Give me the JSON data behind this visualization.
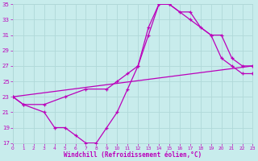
{
  "xlabel": "Windchill (Refroidissement éolien,°C)",
  "bg_color": "#c8ecec",
  "grid_color": "#b0d8d8",
  "line_color": "#bb00bb",
  "xlim": [
    0,
    23
  ],
  "ylim": [
    17,
    35
  ],
  "xticks": [
    0,
    1,
    2,
    3,
    4,
    5,
    6,
    7,
    8,
    9,
    10,
    11,
    12,
    13,
    14,
    15,
    16,
    17,
    18,
    19,
    20,
    21,
    22,
    23
  ],
  "yticks": [
    17,
    19,
    21,
    23,
    25,
    27,
    29,
    31,
    33,
    35
  ],
  "series1_x": [
    0,
    1,
    3,
    4,
    5,
    6,
    7,
    8,
    9,
    10,
    11,
    12,
    13,
    14,
    15,
    16,
    17,
    18,
    19,
    20,
    21,
    22,
    23
  ],
  "series1_y": [
    23,
    22,
    21,
    19,
    19,
    18,
    17,
    17,
    19,
    21,
    24,
    27,
    31,
    35,
    35,
    34,
    34,
    32,
    31,
    28,
    27,
    26,
    26
  ],
  "series2_x": [
    0,
    1,
    3,
    5,
    7,
    9,
    10,
    11,
    12,
    13,
    14,
    15,
    17,
    19,
    20,
    21,
    22,
    23
  ],
  "series2_y": [
    23,
    22,
    22,
    23,
    24,
    24,
    25,
    26,
    27,
    32,
    35,
    35,
    33,
    31,
    31,
    28,
    27,
    27
  ],
  "series3_x": [
    0,
    23
  ],
  "series3_y": [
    23,
    27
  ]
}
